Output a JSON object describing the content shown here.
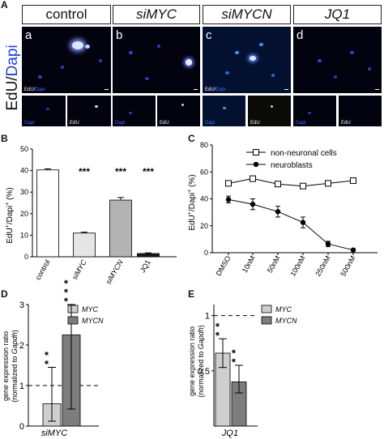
{
  "panel_letters": {
    "a": "A",
    "b": "B",
    "c": "C",
    "d": "D",
    "e": "E"
  },
  "panel_a": {
    "conditions": [
      "control",
      "siMYC",
      "siMYCN",
      "JQ1"
    ],
    "side_label": {
      "edu": "EdU",
      "sep": "/",
      "dapi": "Dapi"
    },
    "image_letters": [
      "a",
      "b",
      "c",
      "d"
    ],
    "caption_edu": "EdU",
    "caption_dapi": "Dapi",
    "caption_slash": "/"
  },
  "chart_data": [
    {
      "panel": "B",
      "type": "bar",
      "categories": [
        "control",
        "siMYC",
        "siMYCN",
        "JQ1"
      ],
      "values": [
        40.3,
        11.0,
        26.3,
        1.5
      ],
      "errors": [
        0.5,
        0.4,
        1.2,
        0.3
      ],
      "colors": [
        "#ffffff",
        "#e6e6e6",
        "#b3b3b3",
        "#1a1a1a"
      ],
      "significance": [
        "",
        "***",
        "***",
        "***"
      ],
      "ylabel": "EdU+/Dapi+ (%)",
      "ylim": [
        0,
        50
      ],
      "yticks": [
        0,
        10,
        20,
        30,
        40,
        50
      ]
    },
    {
      "panel": "C",
      "type": "line",
      "categories": [
        "DMSO",
        "10nM",
        "50nM",
        "100nM",
        "250nM",
        "500nM"
      ],
      "series": [
        {
          "name": "non-neuronal cells",
          "values": [
            51.5,
            55.0,
            51.0,
            49.5,
            51.5,
            53.5
          ],
          "errors": [
            1.0,
            1.0,
            1.0,
            1.0,
            1.0,
            1.0
          ],
          "marker": "square-open"
        },
        {
          "name": "neuroblasts",
          "values": [
            39.5,
            36.0,
            30.5,
            22.5,
            6.5,
            2.0
          ],
          "errors": [
            2.5,
            4.0,
            4.0,
            4.0,
            2.0,
            0.8
          ],
          "marker": "circle-filled"
        }
      ],
      "ylabel": "EdU+/Dapi+ (%)",
      "ylim": [
        0,
        80
      ],
      "yticks": [
        0,
        20,
        40,
        60,
        80
      ],
      "legend_position": "top-right"
    },
    {
      "panel": "D",
      "type": "bar",
      "group": "siMYC",
      "categories": [
        "MYC",
        "MYCN"
      ],
      "values": [
        0.55,
        2.25
      ],
      "err_high": [
        1.45,
        3.0
      ],
      "err_low": [
        0.12,
        0.42
      ],
      "colors": [
        "#cfcfcf",
        "#7d7d7d"
      ],
      "significance": [
        "**",
        "***"
      ],
      "reference_line": 1,
      "ylabel": "gene expression ratio (normalized to Gapdh)",
      "ylim": [
        0,
        3
      ],
      "yticks": [
        0,
        1,
        2,
        3
      ]
    },
    {
      "panel": "E",
      "type": "bar",
      "group": "JQ1",
      "categories": [
        "MYC",
        "MYCN"
      ],
      "values": [
        0.66,
        0.4
      ],
      "err_high": [
        0.79,
        0.55
      ],
      "err_low": [
        0.53,
        0.3
      ],
      "colors": [
        "#cfcfcf",
        "#7d7d7d"
      ],
      "significance": [
        "**",
        "**"
      ],
      "reference_line": 1,
      "ylabel": "gene expression ratio (normalized to Gapdh)",
      "ylim": [
        0,
        1.1
      ],
      "yticks": [
        0.5,
        1
      ]
    }
  ],
  "axis_text": {
    "ylabel_main": "EdU",
    "ylabel_plus1": "+",
    "ylabel_sep": "/Dapi",
    "ylabel_plus2": "+",
    "ylabel_unit": " (%)",
    "expr_line1": "gene expression ratio",
    "expr_line2a": "(normalized to ",
    "expr_line2b": "Gapdh",
    "expr_line2c": ")",
    "group_d": "siMYC",
    "group_e": "JQ1"
  }
}
